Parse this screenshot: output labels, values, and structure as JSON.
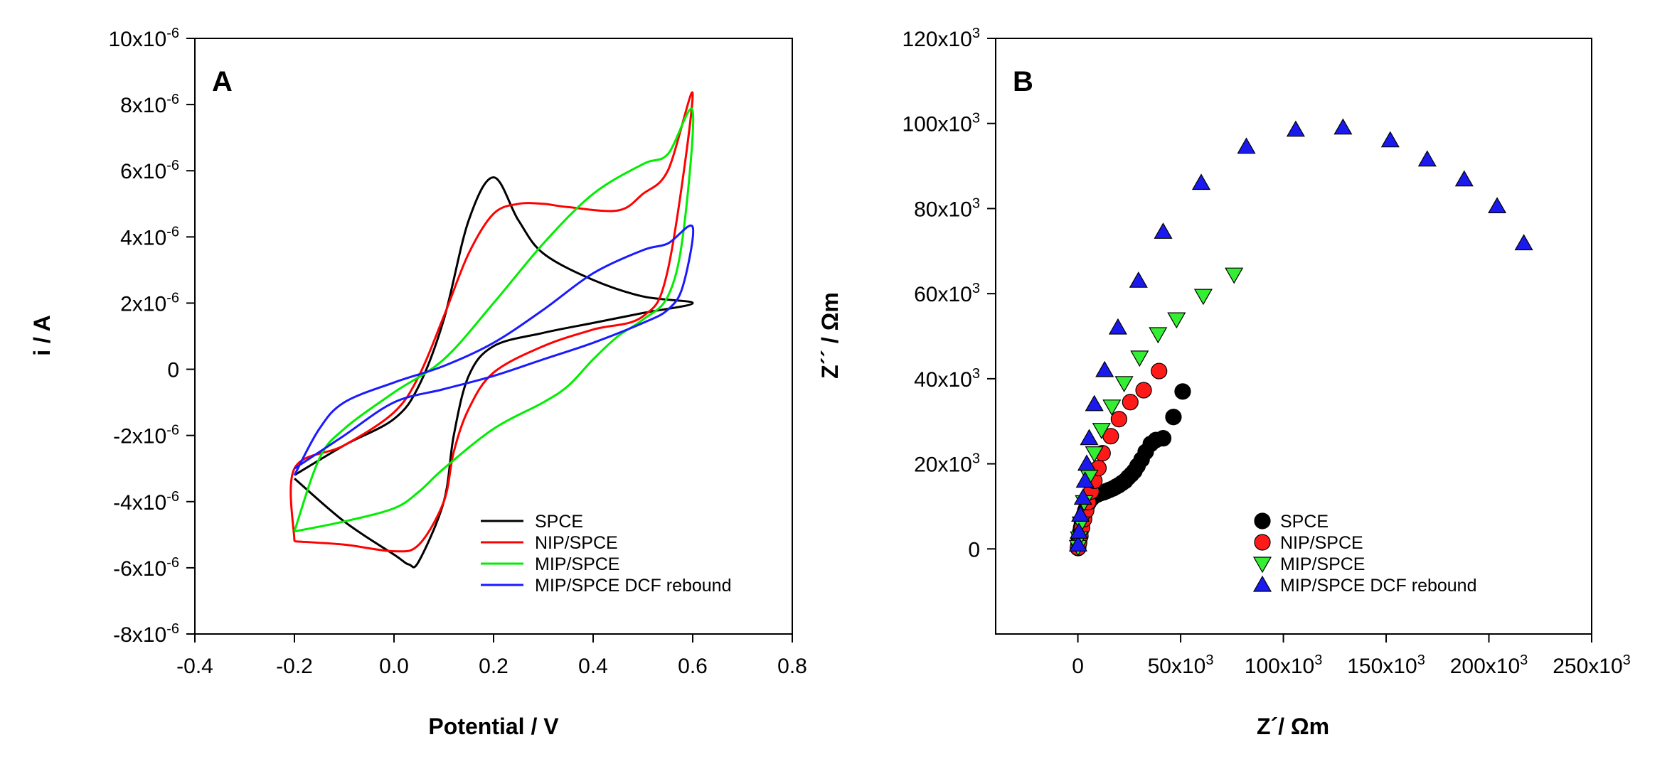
{
  "chart_data": [
    {
      "panel": "A",
      "type": "line",
      "panel_label": "A",
      "xlabel": "Potential / V",
      "ylabel": "i / A",
      "xlim": [
        -0.4,
        0.8
      ],
      "ylim": [
        -8e-06,
        1e-05
      ],
      "x_ticks": [
        -0.4,
        -0.2,
        0.0,
        0.2,
        0.4,
        0.6,
        0.8
      ],
      "x_tick_labels": [
        "-0.4",
        "-0.2",
        "0.0",
        "0.2",
        "0.4",
        "0.6",
        "0.8"
      ],
      "y_ticks": [
        1e-05,
        8e-06,
        6e-06,
        4e-06,
        2e-06,
        0,
        -2e-06,
        -4e-06,
        -6e-06,
        -8e-06
      ],
      "y_tick_labels": [
        {
          "base": "10x10",
          "exp": "-6"
        },
        {
          "base": "8x10",
          "exp": "-6"
        },
        {
          "base": "6x10",
          "exp": "-6"
        },
        {
          "base": "4x10",
          "exp": "-6"
        },
        {
          "base": "2x10",
          "exp": "-6"
        },
        {
          "base": "0",
          "exp": ""
        },
        {
          "base": "-2x10",
          "exp": "-6"
        },
        {
          "base": "-4x10",
          "exp": "-6"
        },
        {
          "base": "-6x10",
          "exp": "-6"
        },
        {
          "base": "-8x10",
          "exp": "-6"
        }
      ],
      "legend_position": "bottom-right",
      "series": [
        {
          "name": "SPCE",
          "color": "#000000",
          "points": [
            [
              -0.2,
              -3.2e-06
            ],
            [
              -0.1,
              -2.3e-06
            ],
            [
              0.0,
              -1.5e-06
            ],
            [
              0.05,
              -5e-07
            ],
            [
              0.1,
              1.5e-06
            ],
            [
              0.15,
              4.5e-06
            ],
            [
              0.2,
              5.8e-06
            ],
            [
              0.25,
              4.5e-06
            ],
            [
              0.3,
              3.5e-06
            ],
            [
              0.4,
              2.7e-06
            ],
            [
              0.5,
              2.2e-06
            ],
            [
              0.6,
              2e-06
            ],
            [
              0.5,
              1.7e-06
            ],
            [
              0.4,
              1.4e-06
            ],
            [
              0.3,
              1.1e-06
            ],
            [
              0.2,
              7e-07
            ],
            [
              0.15,
              -2e-07
            ],
            [
              0.12,
              -2e-06
            ],
            [
              0.1,
              -4e-06
            ],
            [
              0.05,
              -5.8e-06
            ],
            [
              0.03,
              -5.9e-06
            ],
            [
              0.0,
              -5.6e-06
            ],
            [
              -0.1,
              -4.6e-06
            ],
            [
              -0.2,
              -3.3e-06
            ]
          ]
        },
        {
          "name": "NIP/SPCE",
          "color": "#ff0000",
          "points": [
            [
              -0.2,
              -5.2e-06
            ],
            [
              -0.2,
              -3e-06
            ],
            [
              -0.1,
              -2.3e-06
            ],
            [
              0.0,
              -1.3e-06
            ],
            [
              0.05,
              -2e-07
            ],
            [
              0.1,
              1.6e-06
            ],
            [
              0.15,
              3.5e-06
            ],
            [
              0.2,
              4.7e-06
            ],
            [
              0.25,
              5e-06
            ],
            [
              0.3,
              5e-06
            ],
            [
              0.35,
              4.9e-06
            ],
            [
              0.45,
              4.8e-06
            ],
            [
              0.5,
              5.3e-06
            ],
            [
              0.55,
              6e-06
            ],
            [
              0.6,
              8.3e-06
            ],
            [
              0.55,
              3e-06
            ],
            [
              0.5,
              1.6e-06
            ],
            [
              0.4,
              1.2e-06
            ],
            [
              0.3,
              7e-07
            ],
            [
              0.2,
              -1e-07
            ],
            [
              0.15,
              -1.2e-06
            ],
            [
              0.12,
              -2.5e-06
            ],
            [
              0.1,
              -4e-06
            ],
            [
              0.05,
              -5.3e-06
            ],
            [
              0.0,
              -5.5e-06
            ],
            [
              -0.1,
              -5.3e-06
            ],
            [
              -0.2,
              -5.2e-06
            ]
          ]
        },
        {
          "name": "MIP/SPCE",
          "color": "#00ee00",
          "points": [
            [
              -0.2,
              -4.9e-06
            ],
            [
              -0.15,
              -2.7e-06
            ],
            [
              -0.1,
              -1.8e-06
            ],
            [
              0.0,
              -7e-07
            ],
            [
              0.1,
              3e-07
            ],
            [
              0.2,
              2e-06
            ],
            [
              0.3,
              3.8e-06
            ],
            [
              0.4,
              5.3e-06
            ],
            [
              0.5,
              6.2e-06
            ],
            [
              0.55,
              6.5e-06
            ],
            [
              0.6,
              7.8e-06
            ],
            [
              0.58,
              4e-06
            ],
            [
              0.55,
              2.2e-06
            ],
            [
              0.5,
              1.5e-06
            ],
            [
              0.45,
              1e-06
            ],
            [
              0.4,
              3e-07
            ],
            [
              0.35,
              -5e-07
            ],
            [
              0.3,
              -1e-06
            ],
            [
              0.2,
              -1.8e-06
            ],
            [
              0.1,
              -3e-06
            ],
            [
              0.05,
              -3.7e-06
            ],
            [
              0.0,
              -4.2e-06
            ],
            [
              -0.1,
              -4.6e-06
            ],
            [
              -0.2,
              -4.9e-06
            ]
          ]
        },
        {
          "name": "MIP/SPCE DCF rebound",
          "color": "#1a1aff",
          "points": [
            [
              -0.2,
              -3.2e-06
            ],
            [
              -0.15,
              -1.8e-06
            ],
            [
              -0.1,
              -1e-06
            ],
            [
              0.0,
              -4e-07
            ],
            [
              0.1,
              1e-07
            ],
            [
              0.2,
              8e-07
            ],
            [
              0.3,
              1.8e-06
            ],
            [
              0.4,
              2.9e-06
            ],
            [
              0.5,
              3.6e-06
            ],
            [
              0.55,
              3.8e-06
            ],
            [
              0.6,
              4.3e-06
            ],
            [
              0.58,
              2.5e-06
            ],
            [
              0.55,
              1.8e-06
            ],
            [
              0.5,
              1.4e-06
            ],
            [
              0.4,
              8e-07
            ],
            [
              0.3,
              3e-07
            ],
            [
              0.2,
              -2e-07
            ],
            [
              0.1,
              -6e-07
            ],
            [
              0.0,
              -1e-06
            ],
            [
              -0.1,
              -2e-06
            ],
            [
              -0.2,
              -3e-06
            ]
          ]
        }
      ]
    },
    {
      "panel": "B",
      "type": "scatter",
      "panel_label": "B",
      "xlabel": "Z´/ Ωm",
      "ylabel": "Z´´ / Ωm",
      "xlim": [
        -40000,
        250000
      ],
      "ylim": [
        -20000,
        120000
      ],
      "x_ticks": [
        0,
        50000,
        100000,
        150000,
        200000,
        250000
      ],
      "x_tick_labels": [
        {
          "base": "0",
          "exp": ""
        },
        {
          "base": "50x10",
          "exp": "3"
        },
        {
          "base": "100x10",
          "exp": "3"
        },
        {
          "base": "150x10",
          "exp": "3"
        },
        {
          "base": "200x10",
          "exp": "3"
        },
        {
          "base": "250x10",
          "exp": "3"
        }
      ],
      "y_ticks": [
        120000,
        100000,
        80000,
        60000,
        40000,
        20000,
        0
      ],
      "y_tick_labels": [
        {
          "base": "120x10",
          "exp": "3"
        },
        {
          "base": "100x10",
          "exp": "3"
        },
        {
          "base": "80x10",
          "exp": "3"
        },
        {
          "base": "60x10",
          "exp": "3"
        },
        {
          "base": "40x10",
          "exp": "3"
        },
        {
          "base": "20x10",
          "exp": "3"
        },
        {
          "base": "0",
          "exp": ""
        }
      ],
      "legend_position": "bottom-right",
      "series": [
        {
          "name": "SPCE",
          "marker": "circle",
          "color": "#000000",
          "points": [
            [
              100,
              200
            ],
            [
              300,
              1000
            ],
            [
              500,
              2000
            ],
            [
              800,
              3000
            ],
            [
              1200,
              4000
            ],
            [
              1600,
              5000
            ],
            [
              2000,
              6000
            ],
            [
              2500,
              7000
            ],
            [
              3000,
              8000
            ],
            [
              3600,
              9000
            ],
            [
              4300,
              10000
            ],
            [
              5100,
              10800
            ],
            [
              6000,
              11500
            ],
            [
              7000,
              12000
            ],
            [
              8200,
              12500
            ],
            [
              9500,
              12800
            ],
            [
              11000,
              13100
            ],
            [
              12500,
              13300
            ],
            [
              14000,
              13600
            ],
            [
              15500,
              13900
            ],
            [
              17000,
              14200
            ],
            [
              18500,
              14600
            ],
            [
              20000,
              15000
            ],
            [
              21500,
              15500
            ],
            [
              23000,
              16000
            ],
            [
              24500,
              16800
            ],
            [
              26000,
              17500
            ],
            [
              27500,
              18300
            ],
            [
              29000,
              19500
            ],
            [
              31000,
              21000
            ],
            [
              33000,
              22800
            ],
            [
              35500,
              24700
            ],
            [
              38000,
              25600
            ],
            [
              41500,
              26000
            ],
            [
              46500,
              31000
            ],
            [
              51000,
              37000
            ]
          ]
        },
        {
          "name": "NIP/SPCE",
          "marker": "circle",
          "color": "#ff1a1a",
          "points": [
            [
              100,
              300
            ],
            [
              600,
              1500
            ],
            [
              1200,
              3000
            ],
            [
              2000,
              5000
            ],
            [
              3000,
              7000
            ],
            [
              4000,
              9000
            ],
            [
              5000,
              11000
            ],
            [
              6500,
              13500
            ],
            [
              8000,
              16000
            ],
            [
              10000,
              19000
            ],
            [
              12000,
              22500
            ],
            [
              16000,
              26500
            ],
            [
              20000,
              30500
            ],
            [
              25500,
              34500
            ],
            [
              32000,
              37300
            ],
            [
              39500,
              41800
            ]
          ]
        },
        {
          "name": "MIP/SPCE",
          "marker": "triangle-down",
          "color": "#33ee33",
          "points": [
            [
              100,
              500
            ],
            [
              600,
              2500
            ],
            [
              1500,
              6000
            ],
            [
              3000,
              11000
            ],
            [
              5500,
              17000
            ],
            [
              8000,
              22500
            ],
            [
              11500,
              28000
            ],
            [
              16500,
              33500
            ],
            [
              22500,
              39000
            ],
            [
              30000,
              45000
            ],
            [
              39000,
              50500
            ],
            [
              48000,
              54000
            ],
            [
              61000,
              59500
            ],
            [
              76000,
              64500
            ]
          ]
        },
        {
          "name": "MIP/SPCE DCF rebound",
          "marker": "triangle-up",
          "color": "#1a1aee",
          "points": [
            [
              100,
              1000
            ],
            [
              500,
              4000
            ],
            [
              1200,
              8000
            ],
            [
              2500,
              12000
            ],
            [
              3500,
              16000
            ],
            [
              4300,
              20000
            ],
            [
              5500,
              26000
            ],
            [
              8000,
              34000
            ],
            [
              13000,
              42000
            ],
            [
              19500,
              52000
            ],
            [
              29500,
              63000
            ],
            [
              41500,
              74500
            ],
            [
              60000,
              86000
            ],
            [
              82000,
              94500
            ],
            [
              106000,
              98500
            ],
            [
              129000,
              99000
            ],
            [
              152000,
              96000
            ],
            [
              170000,
              91500
            ],
            [
              188000,
              86800
            ],
            [
              204000,
              80500
            ],
            [
              217000,
              71800
            ]
          ]
        }
      ]
    }
  ]
}
